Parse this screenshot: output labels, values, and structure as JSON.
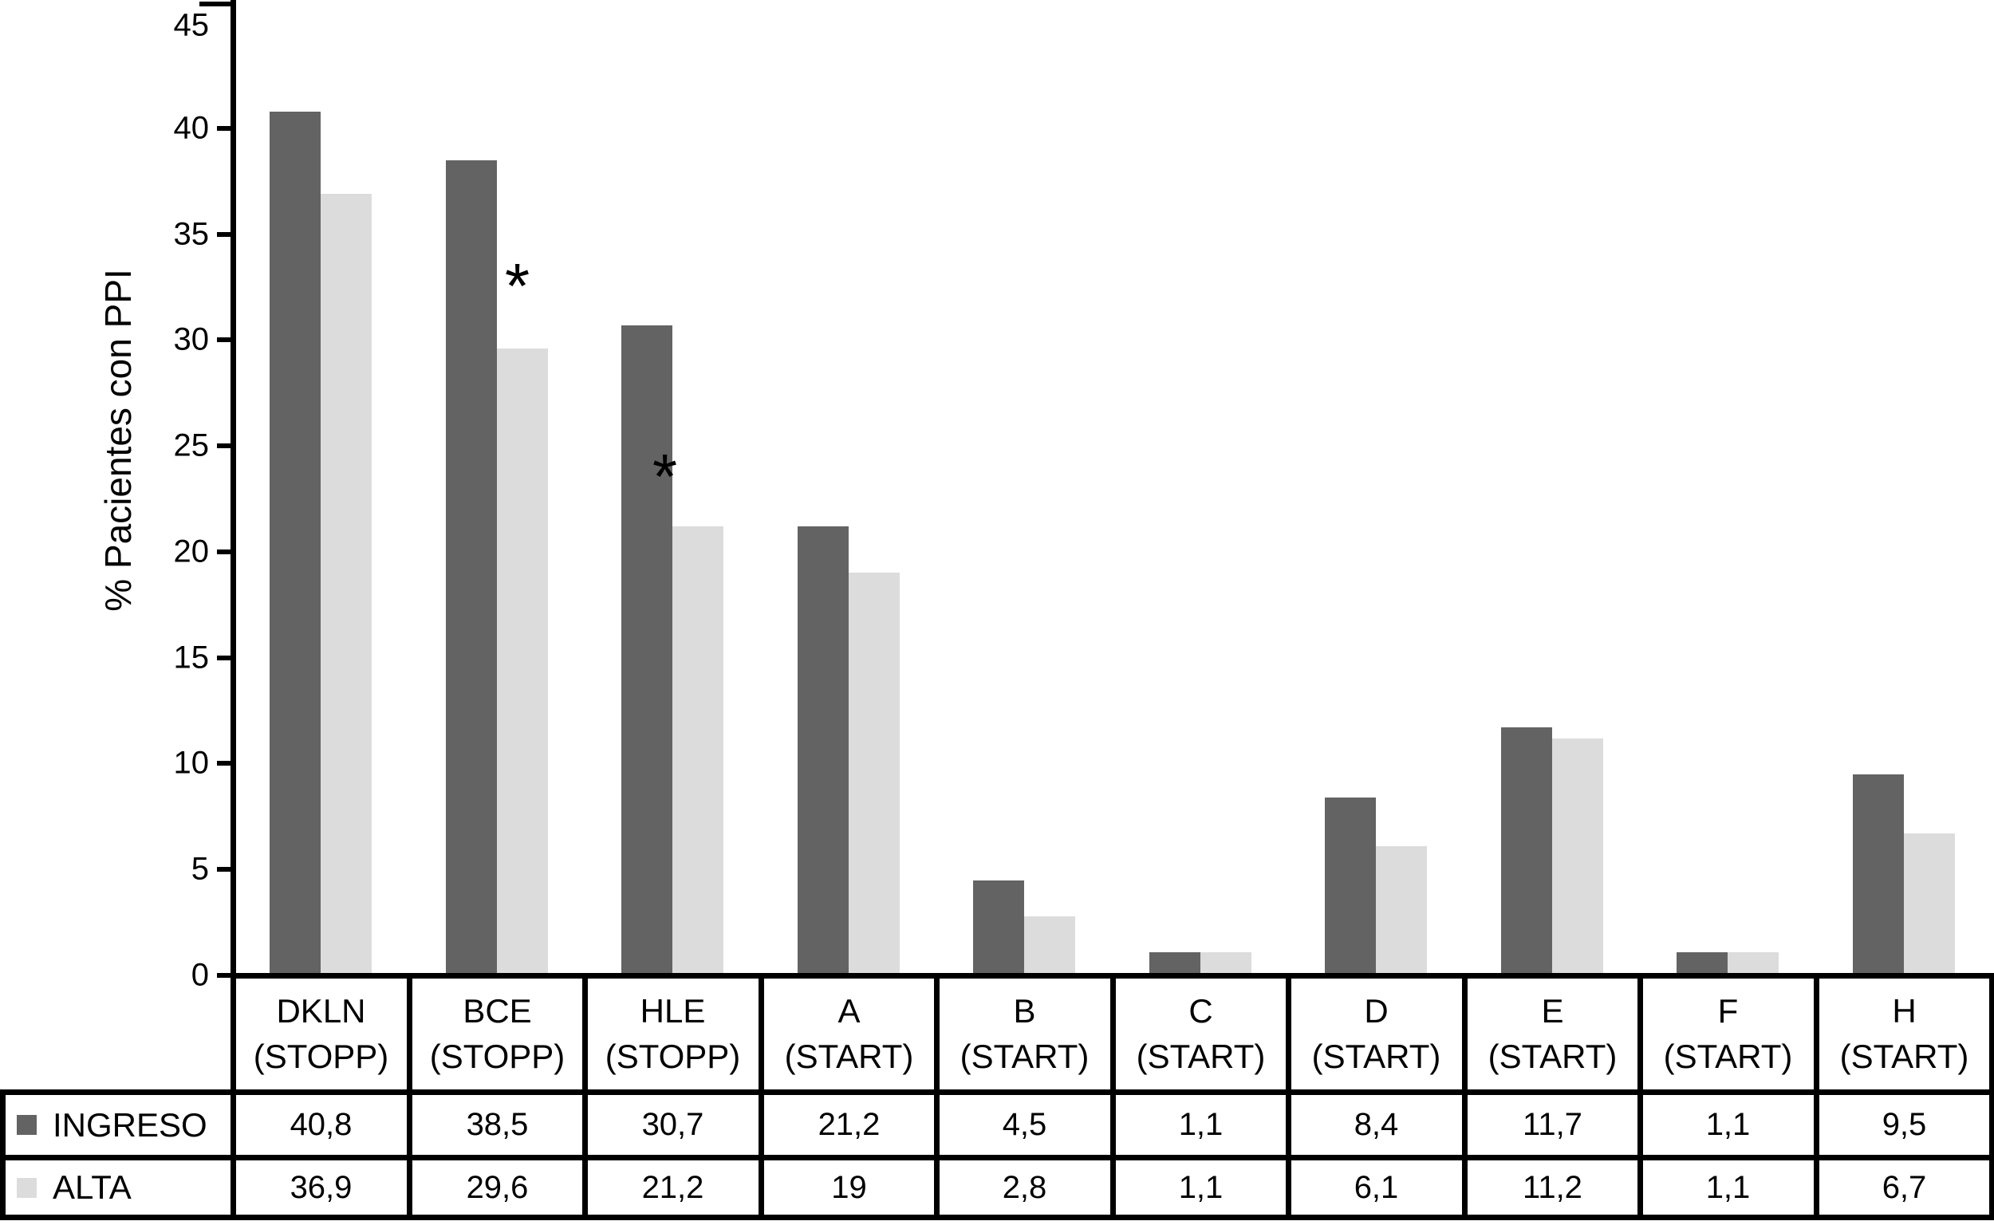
{
  "figure": {
    "kind": "grouped bar chart with attached data table",
    "background": "#ffffff",
    "line_color": "#000000"
  },
  "chart_data": {
    "type": "bar",
    "title": "",
    "xlabel": "",
    "ylabel": "% Pacientes con PPI",
    "ylim": [
      0,
      45
    ],
    "yticks": [
      0,
      5,
      10,
      15,
      20,
      25,
      30,
      35,
      40,
      45
    ],
    "grid": false,
    "legend_position": "table-rows-left",
    "decimal_separator": ",",
    "categories": [
      {
        "line1": "DKLN",
        "line2": "(STOPP)"
      },
      {
        "line1": "BCE",
        "line2": "(STOPP)"
      },
      {
        "line1": "HLE",
        "line2": "(STOPP)"
      },
      {
        "line1": "A",
        "line2": "(START)"
      },
      {
        "line1": "B",
        "line2": "(START)"
      },
      {
        "line1": "C",
        "line2": "(START)"
      },
      {
        "line1": "D",
        "line2": "(START)"
      },
      {
        "line1": "E",
        "line2": "(START)"
      },
      {
        "line1": "F",
        "line2": "(START)"
      },
      {
        "line1": "H",
        "line2": "(START)"
      }
    ],
    "series": [
      {
        "name": "INGRESO",
        "color": "#636363",
        "values": [
          40.8,
          38.5,
          30.7,
          21.2,
          4.5,
          1.1,
          8.4,
          11.7,
          1.1,
          9.5
        ]
      },
      {
        "name": "ALTA",
        "color": "#dcdcdc",
        "values": [
          36.9,
          29.6,
          21.2,
          19,
          2.8,
          1.1,
          6.1,
          11.2,
          1.1,
          6.7
        ]
      }
    ],
    "annotations": [
      {
        "symbol": "*",
        "category_index": 1,
        "series": "ALTA",
        "x_frac": 0.61,
        "y_value": 33
      },
      {
        "symbol": "*",
        "category_index": 2,
        "series": "ALTA",
        "x_frac": 0.45,
        "y_value": 24
      }
    ]
  }
}
